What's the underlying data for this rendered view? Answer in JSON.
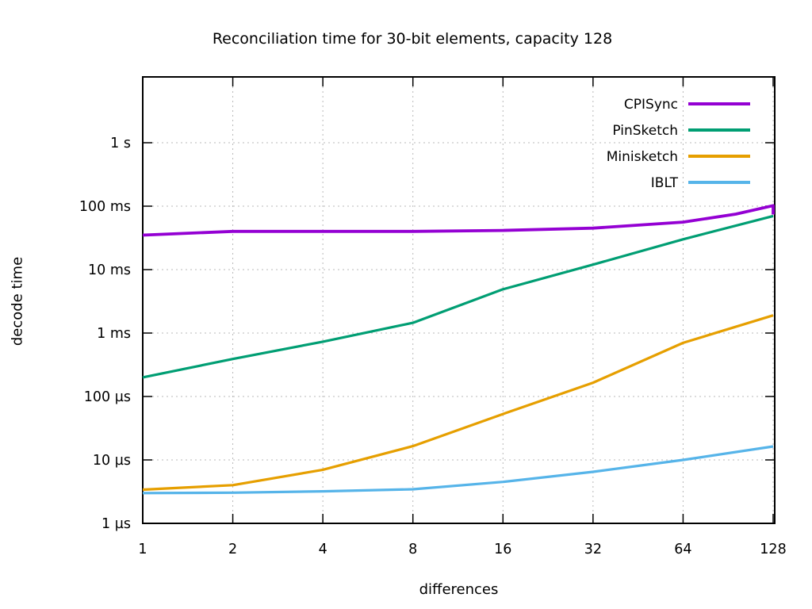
{
  "title": "Reconciliation time for 30-bit elements, capacity 128",
  "x_axis": {
    "label": "differences",
    "tick_labels": [
      "1",
      "2",
      "4",
      "8",
      "16",
      "32",
      "64",
      "128"
    ],
    "tick_values": [
      1,
      2,
      4,
      8,
      16,
      32,
      64,
      128
    ]
  },
  "y_axis": {
    "label": "decode time",
    "tick_labels": [
      "1 s",
      "100 ms",
      "10 ms",
      "1 ms",
      "100 µs",
      "10 µs",
      "1 µs"
    ],
    "tick_values_us": [
      1000000,
      100000,
      10000,
      1000,
      100,
      10,
      1
    ]
  },
  "chart_data": {
    "type": "line",
    "title": "Reconciliation time for 30-bit elements, capacity 128",
    "xlabel": "differences",
    "ylabel": "decode time",
    "x_scale": "log2",
    "y_scale": "log10",
    "x_range": [
      1,
      128
    ],
    "y_range_us": [
      1,
      10500000
    ],
    "grid": "dotted gray at decade lines and power-of-two lines",
    "legend_position": "inside top-right, no box",
    "colors": {
      "grid": "#b8b8b8",
      "border": "#000000"
    },
    "series": [
      {
        "name": "CPISync",
        "color": "#9400d3",
        "x": [
          1,
          2,
          4,
          8,
          16,
          32,
          64,
          96,
          128,
          128
        ],
        "time_us": [
          35000,
          40000,
          40000,
          40000,
          41500,
          45000,
          56000,
          75000,
          102000,
          74000
        ]
      },
      {
        "name": "PinSketch",
        "color": "#009e73",
        "x": [
          1,
          2,
          4,
          8,
          16,
          32,
          64,
          128
        ],
        "time_us": [
          200,
          390,
          730,
          1450,
          4900,
          12000,
          30000,
          70000
        ]
      },
      {
        "name": "Minisketch",
        "color": "#e69f00",
        "x": [
          1,
          2,
          4,
          8,
          16,
          32,
          64,
          128
        ],
        "time_us": [
          3.4,
          4.0,
          7.0,
          16.5,
          53,
          165,
          700,
          1900
        ]
      },
      {
        "name": "IBLT",
        "color": "#56b4e9",
        "x": [
          1,
          2,
          4,
          8,
          16,
          32,
          64,
          128
        ],
        "time_us": [
          3.0,
          3.05,
          3.2,
          3.45,
          4.5,
          6.5,
          10,
          16.3
        ]
      }
    ]
  }
}
